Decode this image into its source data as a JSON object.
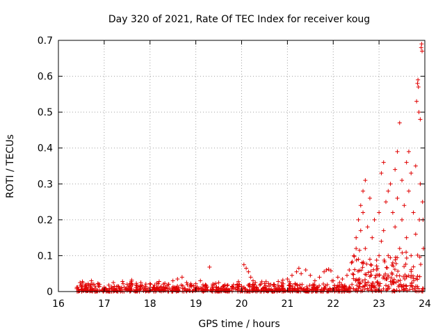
{
  "chart_data": {
    "type": "scatter",
    "title": "Day 320 of 2021, Rate Of TEC Index for receiver koug",
    "xlabel": "GPS time / hours",
    "ylabel": "ROTI / TECUs",
    "xlim": [
      16,
      24
    ],
    "ylim": [
      0,
      0.7
    ],
    "x_ticks": [
      16,
      17,
      18,
      19,
      20,
      21,
      22,
      23,
      24
    ],
    "y_ticks": [
      0,
      0.1,
      0.2,
      0.3,
      0.4,
      0.5,
      0.6,
      0.7
    ],
    "grid": true,
    "marker": "plus",
    "series": [
      {
        "name": "ROTI",
        "color": "#e00000",
        "points": [
          [
            16.42,
            0.012
          ],
          [
            16.5,
            0.018
          ],
          [
            16.58,
            0.01
          ],
          [
            16.65,
            0.022
          ],
          [
            16.72,
            0.03
          ],
          [
            16.8,
            0.015
          ],
          [
            16.9,
            0.02
          ],
          [
            17.0,
            0.012
          ],
          [
            17.1,
            0.018
          ],
          [
            17.2,
            0.025
          ],
          [
            17.3,
            0.015
          ],
          [
            17.4,
            0.028
          ],
          [
            17.5,
            0.02
          ],
          [
            17.6,
            0.032
          ],
          [
            17.7,
            0.018
          ],
          [
            17.8,
            0.025
          ],
          [
            17.9,
            0.015
          ],
          [
            18.0,
            0.022
          ],
          [
            18.1,
            0.018
          ],
          [
            18.2,
            0.028
          ],
          [
            18.3,
            0.012
          ],
          [
            18.4,
            0.02
          ],
          [
            18.5,
            0.03
          ],
          [
            18.6,
            0.035
          ],
          [
            18.7,
            0.04
          ],
          [
            18.8,
            0.025
          ],
          [
            18.9,
            0.018
          ],
          [
            19.0,
            0.022
          ],
          [
            19.1,
            0.03
          ],
          [
            19.2,
            0.015
          ],
          [
            19.3,
            0.068
          ],
          [
            19.4,
            0.02
          ],
          [
            19.5,
            0.025
          ],
          [
            19.6,
            0.015
          ],
          [
            19.7,
            0.018
          ],
          [
            19.8,
            0.012
          ],
          [
            19.9,
            0.02
          ],
          [
            20.0,
            0.015
          ],
          [
            20.05,
            0.075
          ],
          [
            20.1,
            0.065
          ],
          [
            20.15,
            0.055
          ],
          [
            20.2,
            0.04
          ],
          [
            20.25,
            0.03
          ],
          [
            20.3,
            0.025
          ],
          [
            20.4,
            0.018
          ],
          [
            20.5,
            0.022
          ],
          [
            20.6,
            0.015
          ],
          [
            20.7,
            0.02
          ],
          [
            20.8,
            0.028
          ],
          [
            20.9,
            0.032
          ],
          [
            21.0,
            0.035
          ],
          [
            21.1,
            0.045
          ],
          [
            21.2,
            0.055
          ],
          [
            21.25,
            0.065
          ],
          [
            21.3,
            0.05
          ],
          [
            21.4,
            0.06
          ],
          [
            21.5,
            0.045
          ],
          [
            21.6,
            0.03
          ],
          [
            21.7,
            0.04
          ],
          [
            21.8,
            0.055
          ],
          [
            21.85,
            0.06
          ],
          [
            21.9,
            0.062
          ],
          [
            21.95,
            0.058
          ],
          [
            22.0,
            0.03
          ],
          [
            22.1,
            0.04
          ],
          [
            22.2,
            0.035
          ],
          [
            22.3,
            0.045
          ],
          [
            22.35,
            0.06
          ],
          [
            22.4,
            0.08
          ],
          [
            22.45,
            0.1
          ],
          [
            22.5,
            0.12
          ],
          [
            22.5,
            0.15
          ],
          [
            22.55,
            0.2
          ],
          [
            22.55,
            0.09
          ],
          [
            22.6,
            0.17
          ],
          [
            22.6,
            0.24
          ],
          [
            22.65,
            0.22
          ],
          [
            22.65,
            0.28
          ],
          [
            22.7,
            0.31
          ],
          [
            22.7,
            0.12
          ],
          [
            22.75,
            0.18
          ],
          [
            22.8,
            0.26
          ],
          [
            22.8,
            0.09
          ],
          [
            22.85,
            0.15
          ],
          [
            22.9,
            0.2
          ],
          [
            22.95,
            0.06
          ],
          [
            23.0,
            0.1
          ],
          [
            23.0,
            0.22
          ],
          [
            23.05,
            0.33
          ],
          [
            23.05,
            0.14
          ],
          [
            23.1,
            0.36
          ],
          [
            23.1,
            0.17
          ],
          [
            23.15,
            0.25
          ],
          [
            23.2,
            0.28
          ],
          [
            23.2,
            0.1
          ],
          [
            23.25,
            0.3
          ],
          [
            23.3,
            0.22
          ],
          [
            23.3,
            0.08
          ],
          [
            23.35,
            0.34
          ],
          [
            23.35,
            0.18
          ],
          [
            23.4,
            0.39
          ],
          [
            23.4,
            0.26
          ],
          [
            23.45,
            0.47
          ],
          [
            23.45,
            0.12
          ],
          [
            23.5,
            0.31
          ],
          [
            23.5,
            0.2
          ],
          [
            23.55,
            0.24
          ],
          [
            23.6,
            0.36
          ],
          [
            23.6,
            0.15
          ],
          [
            23.65,
            0.39
          ],
          [
            23.65,
            0.28
          ],
          [
            23.7,
            0.33
          ],
          [
            23.7,
            0.1
          ],
          [
            23.75,
            0.22
          ],
          [
            23.8,
            0.35
          ],
          [
            23.8,
            0.16
          ],
          [
            23.82,
            0.53
          ],
          [
            23.84,
            0.58
          ],
          [
            23.85,
            0.59
          ],
          [
            23.86,
            0.57
          ],
          [
            23.87,
            0.5
          ],
          [
            23.88,
            0.2
          ],
          [
            23.9,
            0.48
          ],
          [
            23.9,
            0.3
          ],
          [
            23.92,
            0.68
          ],
          [
            23.93,
            0.69
          ],
          [
            23.94,
            0.67
          ],
          [
            23.95,
            0.25
          ],
          [
            23.96,
            0.2
          ],
          [
            23.97,
            0.12
          ]
        ]
      }
    ]
  }
}
